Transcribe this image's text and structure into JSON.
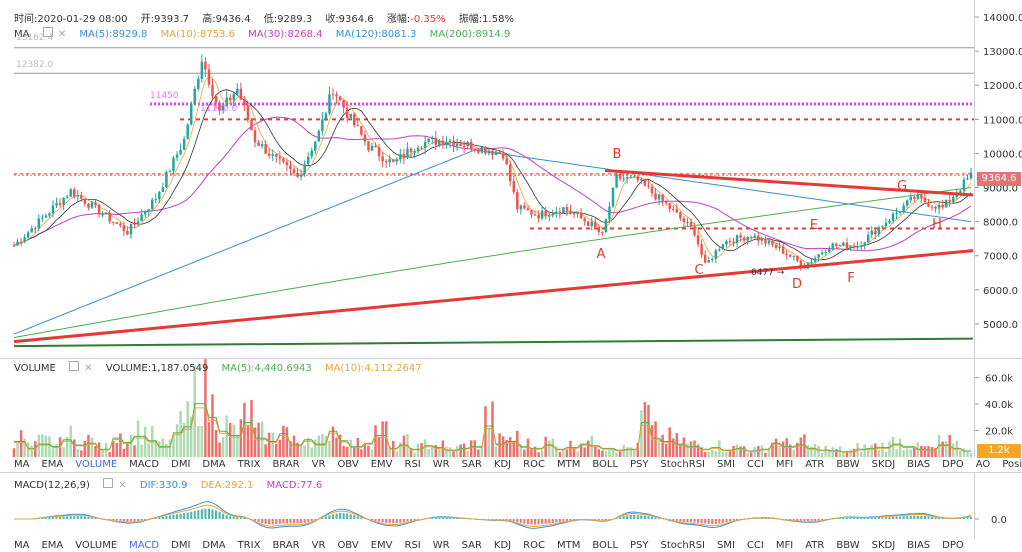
{
  "header": {
    "time": "时间:2020-01-29 08:00",
    "open": "开:9393.7",
    "high": "高:9436.4",
    "low": "低:9289.3",
    "close": "收:9364.6",
    "change_label": "涨幅:",
    "change_value": "-0.35%",
    "amplitude": "振幅:1.58%"
  },
  "ma_legend": {
    "label": "MA",
    "ma5": "MA(5):8929.8",
    "ma10": "MA(10):8753.6",
    "ma30": "MA(30):8268.4",
    "ma120": "MA(120):8081.3",
    "ma200": "MA(200):8914.9"
  },
  "left_values": {
    "v1": "13162.4",
    "v2": "12382.0"
  },
  "overlay_values": {
    "pink1": "11450",
    "pink2": "11100.0"
  },
  "volume_legend": {
    "label": "VOLUME",
    "volume": "VOLUME:1,187.0549",
    "ma5": "MA(5):4,440.6943",
    "ma10": "MA(10):4,112.2647"
  },
  "macd_legend": {
    "label": "MACD(12,26,9)",
    "dif": "DIF:330.9",
    "dea": "DEA:292.1",
    "macd": "MACD:77.6"
  },
  "current_price_tag": "9364.6",
  "volume_tag": "1.2k",
  "low_annotation": "6477 →",
  "pattern_labels": [
    "A",
    "B",
    "C",
    "D",
    "E",
    "F",
    "G",
    "H"
  ],
  "indicator_tabs": [
    "MA",
    "EMA",
    "VOLUME",
    "MACD",
    "DMI",
    "DMA",
    "TRIX",
    "BRAR",
    "VR",
    "OBV",
    "EMV",
    "RSI",
    "WR",
    "SAR",
    "KDJ",
    "ROC",
    "MTM",
    "BOLL",
    "PSY",
    "StochRSI",
    "SMI",
    "CCI",
    "MFI",
    "ATR",
    "BBW",
    "SKDJ",
    "BIAS",
    "DPO",
    "AO",
    "Position"
  ],
  "tabs_active_row1": "VOLUME",
  "tabs_active_row2": "MACD",
  "colors": {
    "up": "#26a69a",
    "down": "#ef5350",
    "ma5": "#e8a33d",
    "ma10": "#333333",
    "ma30": "#c23fc2",
    "ma120": "#3a8fd6",
    "ma200": "#4caf50",
    "trend_red": "#e53935",
    "trend_green": "#2e7d32",
    "pink_dotted": "#e040fb",
    "red_dashed": "#e53935",
    "change_negative": "#e53935",
    "tag_price": "#e57373",
    "tag_volume": "#f5a623"
  },
  "chart_data": {
    "type": "candlestick",
    "price_axis": {
      "ticks": [
        "14000.0",
        "13000.0",
        "12000.0",
        "11000.0",
        "10000.0",
        "9000.0",
        "8000.0",
        "7000.0",
        "6000.0",
        "5000.0"
      ],
      "range": [
        4000,
        14500
      ]
    },
    "volume_axis": {
      "ticks": [
        "60.0k",
        "40.0k",
        "20.0k"
      ],
      "range": [
        0,
        68000
      ]
    },
    "macd_axis": {
      "ticks": [
        "0.0"
      ]
    },
    "horizontal_levels": {
      "pink_dotted": 11450,
      "red_dashed_upper": 11000,
      "red_dashed_mid": 9400,
      "red_dashed_lower": 7800,
      "gray_top": 13100,
      "gray_second": 12350
    },
    "close_path": [
      [
        0,
        7300
      ],
      [
        8,
        8100
      ],
      [
        16,
        8900
      ],
      [
        24,
        8300
      ],
      [
        32,
        7700
      ],
      [
        40,
        8700
      ],
      [
        48,
        10400
      ],
      [
        53,
        12800
      ],
      [
        58,
        11200
      ],
      [
        63,
        11900
      ],
      [
        68,
        10400
      ],
      [
        74,
        9800
      ],
      [
        80,
        9300
      ],
      [
        86,
        10600
      ],
      [
        90,
        11900
      ],
      [
        95,
        11000
      ],
      [
        100,
        10200
      ],
      [
        107,
        9700
      ],
      [
        114,
        10300
      ],
      [
        122,
        10400
      ],
      [
        130,
        10200
      ],
      [
        138,
        10000
      ],
      [
        142,
        8400
      ],
      [
        148,
        8200
      ],
      [
        155,
        8400
      ],
      [
        163,
        7900
      ],
      [
        166,
        7600
      ],
      [
        170,
        9300
      ],
      [
        176,
        9200
      ],
      [
        184,
        8500
      ],
      [
        192,
        7700
      ],
      [
        195,
        6700
      ],
      [
        200,
        7400
      ],
      [
        208,
        7600
      ],
      [
        216,
        7200
      ],
      [
        223,
        6700
      ],
      [
        230,
        7300
      ],
      [
        238,
        7300
      ],
      [
        246,
        8000
      ],
      [
        254,
        8700
      ],
      [
        262,
        8400
      ],
      [
        270,
        9360
      ]
    ],
    "volume_series": [
      18,
      10,
      15,
      12,
      20,
      14,
      16,
      9,
      22,
      17,
      24,
      19,
      12,
      28,
      35,
      62,
      46,
      30,
      25,
      40,
      22,
      18,
      27,
      14,
      20,
      15,
      30,
      19,
      12,
      16,
      25,
      10,
      14,
      9,
      13,
      11,
      8,
      10,
      12,
      36,
      15,
      18,
      12,
      10,
      14,
      9,
      11,
      15,
      13,
      10,
      8,
      9,
      40,
      22,
      18,
      15,
      12,
      9,
      11,
      8,
      10,
      7,
      9,
      16,
      12,
      14,
      10,
      8,
      7,
      6,
      9,
      10,
      11,
      15,
      12,
      9,
      8,
      14,
      10,
      7
    ]
  }
}
